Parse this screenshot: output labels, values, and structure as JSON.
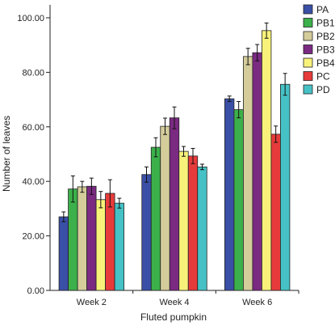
{
  "chart_data": {
    "type": "bar",
    "title": "",
    "xlabel": "Fluted pumpkin",
    "ylabel": "Number of leaves",
    "ylim": [
      0,
      100
    ],
    "yticks": [
      "0.00",
      "20.00",
      "40.00",
      "60.00",
      "80.00",
      "100.00"
    ],
    "categories": [
      "Week 2",
      "Week 4",
      "Week 6"
    ],
    "legend_position": "top-right",
    "error_bars": true,
    "series": [
      {
        "name": "PA",
        "color": "#3a4fa6",
        "values": [
          27.0,
          42.5,
          70.3
        ],
        "errors": [
          1.8,
          2.8,
          1.0
        ]
      },
      {
        "name": "PB1",
        "color": "#3cb04a",
        "values": [
          37.2,
          52.5,
          66.3
        ],
        "errors": [
          4.8,
          3.5,
          3.0
        ]
      },
      {
        "name": "PB2",
        "color": "#d4cc9a",
        "values": [
          38.0,
          60.2,
          85.8
        ],
        "errors": [
          2.0,
          3.0,
          3.0
        ]
      },
      {
        "name": "PB3",
        "color": "#7b2a82",
        "values": [
          38.2,
          63.3,
          87.2
        ],
        "errors": [
          3.0,
          4.0,
          3.0
        ]
      },
      {
        "name": "PB4",
        "color": "#f8f27a",
        "values": [
          33.3,
          51.0,
          95.3
        ],
        "errors": [
          3.0,
          1.8,
          2.8
        ]
      },
      {
        "name": "PC",
        "color": "#e73b3b",
        "values": [
          35.6,
          49.3,
          57.3
        ],
        "errors": [
          5.0,
          2.8,
          3.0
        ]
      },
      {
        "name": "PD",
        "color": "#46c2c6",
        "values": [
          32.0,
          45.3,
          75.6
        ],
        "errors": [
          1.8,
          1.0,
          4.0
        ]
      }
    ]
  }
}
